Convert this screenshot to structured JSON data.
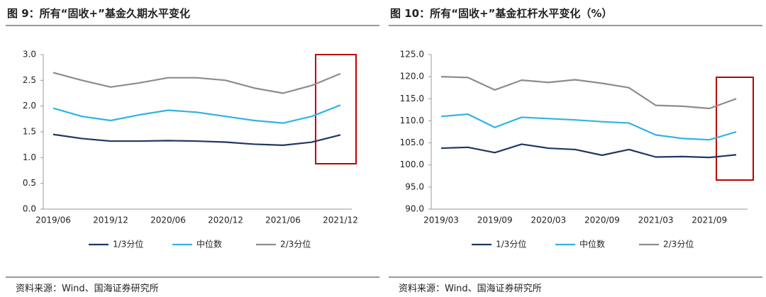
{
  "chart_data": [
    {
      "type": "line",
      "title": "图 9：所有“固收+”基金久期水平变化",
      "categories": [
        "2019/06",
        null,
        "2019/12",
        null,
        "2020/06",
        null,
        "2020/12",
        null,
        "2021/06",
        null,
        "2021/12"
      ],
      "series": [
        {
          "name": "1/3分位",
          "color": "#1f3864",
          "values": [
            1.45,
            1.37,
            1.32,
            1.32,
            1.33,
            1.32,
            1.3,
            1.26,
            1.24,
            1.3,
            1.44
          ]
        },
        {
          "name": "中位数",
          "color": "#2fb4e0",
          "values": [
            1.96,
            1.8,
            1.72,
            1.83,
            1.92,
            1.88,
            1.8,
            1.72,
            1.67,
            1.8,
            2.02
          ]
        },
        {
          "name": "2/3分位",
          "color": "#8c8c8c",
          "values": [
            2.65,
            2.5,
            2.37,
            2.45,
            2.55,
            2.55,
            2.5,
            2.35,
            2.25,
            2.4,
            2.63
          ]
        }
      ],
      "ylim": [
        0,
        3
      ],
      "yticks": [
        {
          "value": 0,
          "label": "0.0"
        },
        0.5,
        {
          "value": 1,
          "label": "1.0"
        },
        1.5,
        {
          "value": 2,
          "label": "2.0"
        },
        2.5,
        {
          "value": 3,
          "label": "3.0"
        }
      ],
      "legend": "bottom",
      "source": "资料来源：Wind、国海证券研究所"
    },
    {
      "type": "line",
      "title": "图 10：所有“固收+”基金杠杆水平变化（%）",
      "categories": [
        "2019/03",
        null,
        "2019/09",
        null,
        "2020/03",
        null,
        "2020/09",
        null,
        "2021/03",
        null,
        "2021/09",
        null
      ],
      "series": [
        {
          "name": "1/3分位",
          "color": "#1f3864",
          "values": [
            103.8,
            104,
            102.8,
            104.7,
            103.8,
            103.5,
            102.2,
            103.5,
            101.8,
            101.9,
            101.7,
            102.3
          ]
        },
        {
          "name": "中位数",
          "color": "#2fb4e0",
          "values": [
            111,
            111.5,
            108.5,
            110.8,
            110.5,
            110.2,
            109.8,
            109.5,
            106.8,
            106,
            105.7,
            107.5
          ]
        },
        {
          "name": "2/3分位",
          "color": "#8c8c8c",
          "values": [
            120,
            119.8,
            117,
            119.2,
            118.7,
            119.3,
            118.5,
            117.5,
            113.5,
            113.3,
            112.8,
            115
          ]
        }
      ],
      "ylim": [
        90,
        125
      ],
      "yticks": [
        {
          "value": 90,
          "label": "90.0"
        },
        {
          "value": 95,
          "label": "95.0"
        },
        {
          "value": 100,
          "label": "100.0"
        },
        {
          "value": 105,
          "label": "105.0"
        },
        {
          "value": 110,
          "label": "110.0"
        },
        {
          "value": 115,
          "label": "115.0"
        },
        {
          "value": 120,
          "label": "120.0"
        },
        {
          "value": 125,
          "label": "125.0"
        }
      ],
      "legend": "bottom",
      "source": "资料来源：Wind、国海证券研究所"
    }
  ]
}
